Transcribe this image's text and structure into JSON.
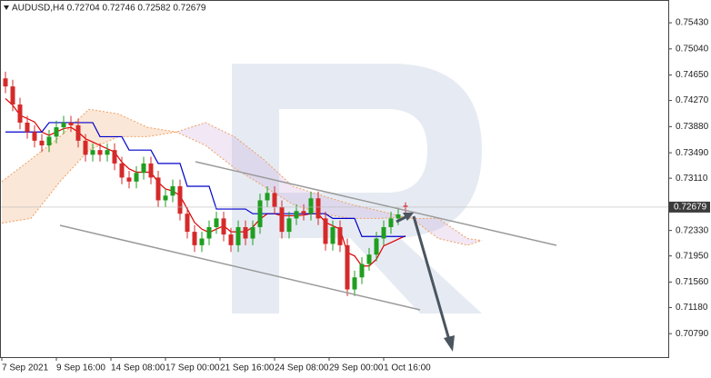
{
  "chart_data": {
    "type": "candlestick",
    "title": "AUDUSD,H4 0.72704 0.72746 0.72582 0.72679",
    "last_price": 0.72679,
    "up_color": "#1f9e1f",
    "down_color": "#d42a2a",
    "x": [
      1,
      3,
      5,
      7,
      9,
      11,
      13,
      15,
      17,
      19,
      21,
      23,
      25,
      27,
      29,
      31,
      33,
      35,
      37,
      39,
      41,
      43,
      45,
      47,
      49,
      51,
      53,
      55,
      57,
      59,
      61,
      63,
      65,
      67,
      69,
      71,
      73,
      75,
      77,
      79,
      81,
      83,
      85,
      87,
      89,
      91,
      93,
      95,
      97,
      99,
      101,
      103,
      105,
      107,
      109,
      111
    ],
    "open": [
      0.746,
      0.7448,
      0.7421,
      0.7394,
      0.738,
      0.7367,
      0.736,
      0.7373,
      0.7387,
      0.7394,
      0.739,
      0.7367,
      0.7346,
      0.7353,
      0.7346,
      0.7353,
      0.7333,
      0.7312,
      0.7306,
      0.7319,
      0.7333,
      0.7312,
      0.7278,
      0.7285,
      0.7299,
      0.7258,
      0.7231,
      0.7211,
      0.7221,
      0.7238,
      0.7251,
      0.7227,
      0.7211,
      0.7238,
      0.7221,
      0.7238,
      0.7278,
      0.7289,
      0.7268,
      0.7231,
      0.7251,
      0.7262,
      0.7258,
      0.7281,
      0.7251,
      0.7213,
      0.7238,
      0.7211,
      0.7145,
      0.7163,
      0.7183,
      0.7197,
      0.7221,
      0.7238,
      0.7251,
      0.727
    ],
    "high": [
      0.747,
      0.7458,
      0.7431,
      0.7404,
      0.739,
      0.7377,
      0.7383,
      0.7397,
      0.7404,
      0.7404,
      0.74,
      0.7377,
      0.7363,
      0.7363,
      0.7363,
      0.7363,
      0.7343,
      0.7322,
      0.7329,
      0.7343,
      0.7343,
      0.7322,
      0.7295,
      0.7309,
      0.7309,
      0.7268,
      0.7241,
      0.7231,
      0.7248,
      0.7261,
      0.7261,
      0.7237,
      0.7248,
      0.7248,
      0.7248,
      0.7288,
      0.7299,
      0.7299,
      0.7278,
      0.7261,
      0.7272,
      0.7272,
      0.7291,
      0.7291,
      0.7261,
      0.7248,
      0.7248,
      0.7221,
      0.7173,
      0.7193,
      0.7207,
      0.7231,
      0.7248,
      0.7261,
      0.7267,
      0.7275
    ],
    "low": [
      0.7438,
      0.7411,
      0.7384,
      0.737,
      0.7357,
      0.735,
      0.735,
      0.7363,
      0.7377,
      0.738,
      0.7357,
      0.7336,
      0.7336,
      0.7336,
      0.7336,
      0.7323,
      0.7302,
      0.7296,
      0.7296,
      0.7309,
      0.7302,
      0.7268,
      0.7268,
      0.7275,
      0.7248,
      0.7221,
      0.7201,
      0.7201,
      0.7211,
      0.7228,
      0.7217,
      0.7201,
      0.7201,
      0.7211,
      0.7211,
      0.7228,
      0.7268,
      0.7258,
      0.7221,
      0.7221,
      0.7241,
      0.7248,
      0.7248,
      0.7241,
      0.7203,
      0.7203,
      0.7201,
      0.7135,
      0.7135,
      0.7153,
      0.7173,
      0.7187,
      0.7211,
      0.7228,
      0.7241,
      0.7258
    ],
    "close": [
      0.7448,
      0.7421,
      0.7394,
      0.738,
      0.7367,
      0.736,
      0.7373,
      0.7387,
      0.7394,
      0.739,
      0.7367,
      0.7346,
      0.7353,
      0.7346,
      0.7353,
      0.7333,
      0.7312,
      0.7306,
      0.7319,
      0.7333,
      0.7312,
      0.7278,
      0.7285,
      0.7299,
      0.7258,
      0.7231,
      0.7211,
      0.7221,
      0.7238,
      0.7251,
      0.7227,
      0.7211,
      0.7238,
      0.7221,
      0.7238,
      0.7278,
      0.7289,
      0.7268,
      0.7231,
      0.7251,
      0.7262,
      0.7258,
      0.7281,
      0.7251,
      0.7213,
      0.7238,
      0.7211,
      0.7145,
      0.7163,
      0.7183,
      0.7197,
      0.7221,
      0.7238,
      0.7251,
      0.7257,
      0.7268
    ],
    "lines": [
      {
        "color": "#e00000",
        "values": [
          0.743,
          0.742,
          0.7405,
          0.74,
          0.7395,
          0.738,
          0.7375,
          0.738,
          0.7385,
          0.7387,
          0.738,
          0.737,
          0.7365,
          0.736,
          0.7355,
          0.735,
          0.7335,
          0.7325,
          0.732,
          0.732,
          0.732,
          0.7305,
          0.7295,
          0.7292,
          0.7285,
          0.7265,
          0.7245,
          0.7235,
          0.723,
          0.7235,
          0.724,
          0.7231,
          0.7231,
          0.7231,
          0.7238,
          0.725,
          0.7258,
          0.7258,
          0.7255,
          0.7255,
          0.7255,
          0.7256,
          0.7258,
          0.7258,
          0.7245,
          0.724,
          0.7235,
          0.72,
          0.7195,
          0.718,
          0.718,
          0.719,
          0.721,
          0.7215,
          0.722,
          0.7225
        ]
      },
      {
        "color": "#0000cc",
        "values": [
          0.738,
          0.738,
          0.738,
          0.738,
          0.738,
          0.738,
          0.7394,
          0.7394,
          0.7394,
          0.7394,
          0.7394,
          0.7394,
          0.7394,
          0.7373,
          0.7373,
          0.7373,
          0.7373,
          0.7353,
          0.7353,
          0.7353,
          0.7353,
          0.7333,
          0.7333,
          0.7333,
          0.7333,
          0.7299,
          0.7299,
          0.7299,
          0.7299,
          0.7265,
          0.7265,
          0.7265,
          0.7265,
          0.7265,
          0.7258,
          0.7258,
          0.7258,
          0.7258,
          0.7258,
          0.7258,
          0.7258,
          0.7258,
          0.7258,
          0.7258,
          0.7258,
          0.7251,
          0.7251,
          0.7251,
          0.7251,
          0.7224,
          0.7224,
          0.7224,
          0.7224,
          0.7224,
          0.7224,
          0.7224
        ]
      }
    ],
    "cloud": {
      "x": [
        0,
        8,
        16,
        24,
        32,
        40,
        48,
        56,
        64,
        72,
        80,
        88,
        96,
        104,
        112,
        120,
        128,
        132
      ],
      "span_a": [
        0.7306,
        0.7339,
        0.7373,
        0.7414,
        0.7407,
        0.7387,
        0.738,
        0.736,
        0.7326,
        0.7299,
        0.7272,
        0.7258,
        0.7251,
        0.7251,
        0.7254,
        0.7221,
        0.7211,
        0.7218
      ],
      "span_b": [
        0.7244,
        0.7251,
        0.7306,
        0.7353,
        0.7373,
        0.7373,
        0.738,
        0.7394,
        0.7373,
        0.7339,
        0.7299,
        0.7285,
        0.7272,
        0.7262,
        0.7251,
        0.7251,
        0.7221,
        0.7218
      ],
      "up_color": "#f0a060",
      "down_color": "#c8a0d8"
    },
    "xlim": [
      -0.5,
      183.25
    ],
    "xticks": [
      {
        "value": 0,
        "label": "7 Sep 2021"
      },
      {
        "value": 15,
        "label": "9 Sep 16:00"
      },
      {
        "value": 30,
        "label": "14 Sep 08:00"
      },
      {
        "value": 45,
        "label": "17 Sep 00:00"
      },
      {
        "value": 60,
        "label": "21 Sep 16:00"
      },
      {
        "value": 75,
        "label": "24 Sep 08:00"
      },
      {
        "value": 90,
        "label": "29 Sep 00:00"
      },
      {
        "value": 105,
        "label": "1 Oct 16:00"
      }
    ],
    "ylim": [
      0.7044,
      0.7577
    ],
    "yticks": [
      {
        "value": 0.7543,
        "label": "0.75430"
      },
      {
        "value": 0.7504,
        "label": "0.75040"
      },
      {
        "value": 0.7465,
        "label": "0.74650"
      },
      {
        "value": 0.7427,
        "label": "0.74270"
      },
      {
        "value": 0.7388,
        "label": "0.73880"
      },
      {
        "value": 0.7349,
        "label": "0.73490"
      },
      {
        "value": 0.7311,
        "label": "0.73110"
      },
      {
        "value": 0.7233,
        "label": "0.72330"
      },
      {
        "value": 0.7195,
        "label": "0.71950"
      },
      {
        "value": 0.7156,
        "label": "0.71560"
      },
      {
        "value": 0.7118,
        "label": "0.71180"
      },
      {
        "value": 0.7079,
        "label": "0.70790"
      }
    ]
  }
}
